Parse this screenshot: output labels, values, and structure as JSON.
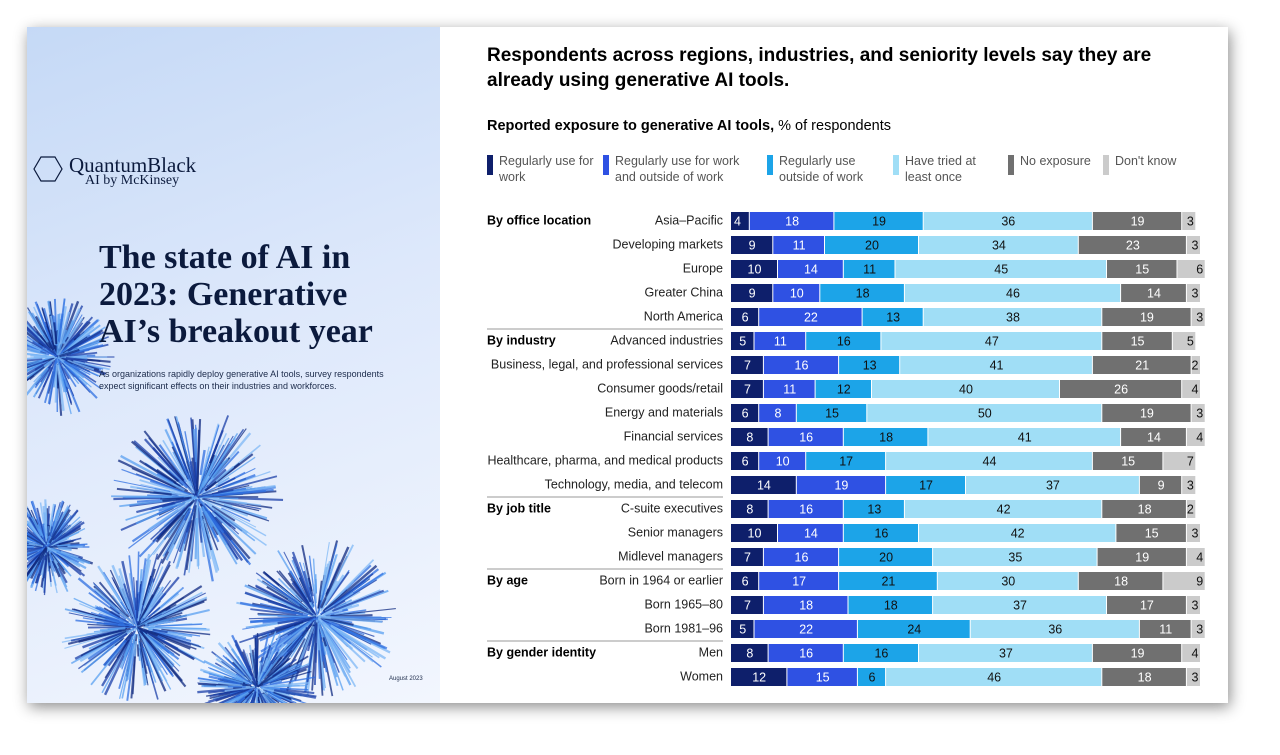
{
  "cover": {
    "brand": "QuantumBlack",
    "brand_sub": "AI by McKinsey",
    "title": "The state of AI in 2023: Generative AI’s breakout year",
    "subtitle": "As organizations rapidly deploy generative AI tools, survey respondents expect significant effects on their industries and workforces.",
    "date": "August 2023"
  },
  "chart_data": {
    "type": "stacked-bar-horizontal",
    "title": "Respondents across regions, industries, and seniority levels say they are already using generative AI tools.",
    "subtitle": "Reported exposure to generative AI tools,",
    "unit": "% of respondents",
    "groups": [
      {
        "label": "By office location",
        "categories": [
          "Asia–Pacific",
          "Developing markets",
          "Europe",
          "Greater China",
          "North America"
        ]
      },
      {
        "label": "By industry",
        "categories": [
          "Advanced industries",
          "Business, legal, and professional services",
          "Consumer goods/retail",
          "Energy and materials",
          "Financial services",
          "Healthcare, pharma, and medical products",
          "Technology, media, and telecom"
        ]
      },
      {
        "label": "By job title",
        "categories": [
          "C-suite executives",
          "Senior managers",
          "Midlevel managers"
        ]
      },
      {
        "label": "By age",
        "categories": [
          "Born in 1964 or earlier",
          "Born 1965–80",
          "Born 1981–96"
        ]
      },
      {
        "label": "By gender identity",
        "categories": [
          "Men",
          "Women"
        ]
      }
    ],
    "series": [
      {
        "name": "Regularly use for work",
        "color": "#0e1f6b",
        "values": [
          4,
          9,
          10,
          9,
          6,
          5,
          7,
          7,
          6,
          8,
          6,
          14,
          8,
          10,
          7,
          6,
          7,
          5,
          8,
          12
        ]
      },
      {
        "name": "Regularly use for work and outside of work",
        "color": "#2f51e3",
        "values": [
          18,
          11,
          14,
          10,
          22,
          11,
          16,
          11,
          8,
          16,
          10,
          19,
          16,
          14,
          16,
          17,
          18,
          22,
          16,
          15
        ]
      },
      {
        "name": "Regularly use outside of work",
        "color": "#1ca4e8",
        "values": [
          19,
          20,
          11,
          18,
          13,
          16,
          13,
          12,
          15,
          18,
          17,
          17,
          13,
          16,
          20,
          21,
          18,
          24,
          16,
          6
        ]
      },
      {
        "name": "Have tried at least once",
        "color": "#a0def6",
        "values": [
          36,
          34,
          45,
          46,
          38,
          47,
          41,
          40,
          50,
          41,
          44,
          37,
          42,
          42,
          35,
          30,
          37,
          36,
          37,
          46
        ]
      },
      {
        "name": "No exposure",
        "color": "#707070",
        "values": [
          19,
          23,
          15,
          14,
          19,
          15,
          21,
          26,
          19,
          14,
          15,
          9,
          18,
          15,
          19,
          18,
          17,
          11,
          19,
          18
        ]
      },
      {
        "name": "Don't know",
        "color": "#cbcbcb",
        "values": [
          3,
          3,
          6,
          3,
          3,
          5,
          2,
          4,
          3,
          4,
          7,
          3,
          2,
          3,
          4,
          9,
          3,
          3,
          4,
          3
        ]
      }
    ]
  }
}
